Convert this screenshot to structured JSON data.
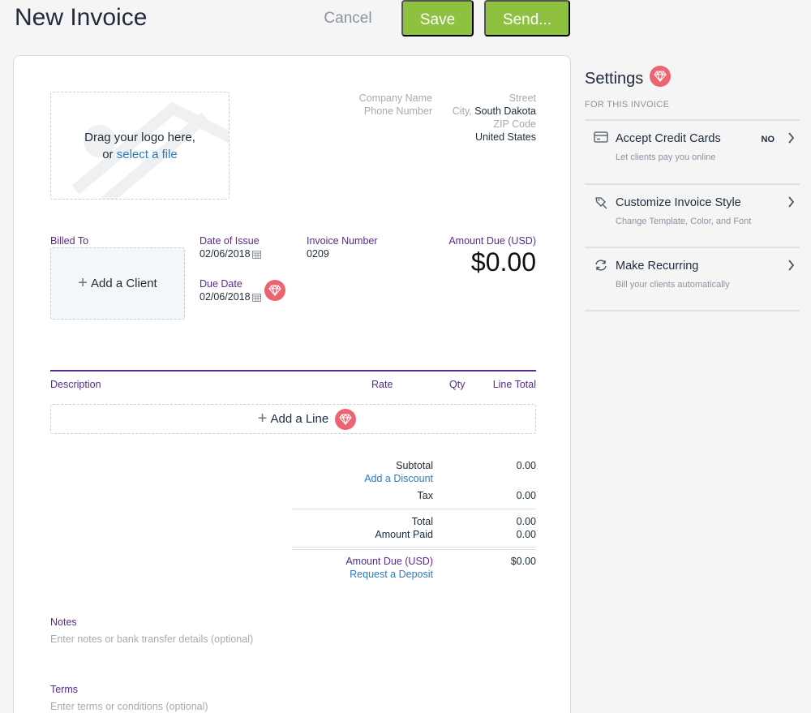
{
  "header": {
    "title": "New Invoice",
    "cancel_label": "Cancel",
    "save_label": "Save",
    "send_label": "Send..."
  },
  "colors": {
    "accent_green": "#8dc13f",
    "accent_purple": "#5a2a8c",
    "link_blue": "#2a7bbf",
    "gem_red": "#ec6472"
  },
  "logo": {
    "line1": "Drag your logo here,",
    "or": "or",
    "select_link": "select a file"
  },
  "company": {
    "name_placeholder": "Company Name",
    "phone_placeholder": "Phone Number"
  },
  "address": {
    "street_placeholder": "Street",
    "city_placeholder": "City,",
    "state": "South Dakota",
    "zip_placeholder": "ZIP Code",
    "country": "United States"
  },
  "billing": {
    "billed_to_label": "Billed To",
    "add_client_label": "Add a Client",
    "date_of_issue_label": "Date of Issue",
    "date_of_issue": "02/06/2018",
    "due_date_label": "Due Date",
    "due_date": "02/06/2018",
    "invoice_number_label": "Invoice Number",
    "invoice_number": "0209",
    "amount_due_label": "Amount Due (USD)",
    "amount_due": "$0.00"
  },
  "lines": {
    "columns": [
      "Description",
      "Rate",
      "Qty",
      "Line Total"
    ],
    "add_line_label": "Add a Line"
  },
  "totals": {
    "subtotal_label": "Subtotal",
    "subtotal": "0.00",
    "discount_link": "Add a Discount",
    "tax_label": "Tax",
    "tax": "0.00",
    "total_label": "Total",
    "total": "0.00",
    "amount_paid_label": "Amount Paid",
    "amount_paid": "0.00",
    "amount_due_label": "Amount Due (USD)",
    "amount_due": "$0.00",
    "deposit_link": "Request a Deposit"
  },
  "notes": {
    "label": "Notes",
    "placeholder": "Enter notes or bank transfer details (optional)"
  },
  "terms": {
    "label": "Terms",
    "placeholder": "Enter terms or conditions (optional)"
  },
  "settings": {
    "title": "Settings",
    "subtitle": "FOR THIS INVOICE",
    "items": [
      {
        "icon": "credit-card-icon",
        "title": "Accept Credit Cards",
        "desc": "Let clients pay you online",
        "value": "NO"
      },
      {
        "icon": "paint-brush-icon",
        "title": "Customize Invoice Style",
        "desc": "Change Template, Color, and Font"
      },
      {
        "icon": "recurring-icon",
        "title": "Make Recurring",
        "desc": "Bill your clients automatically"
      }
    ]
  }
}
